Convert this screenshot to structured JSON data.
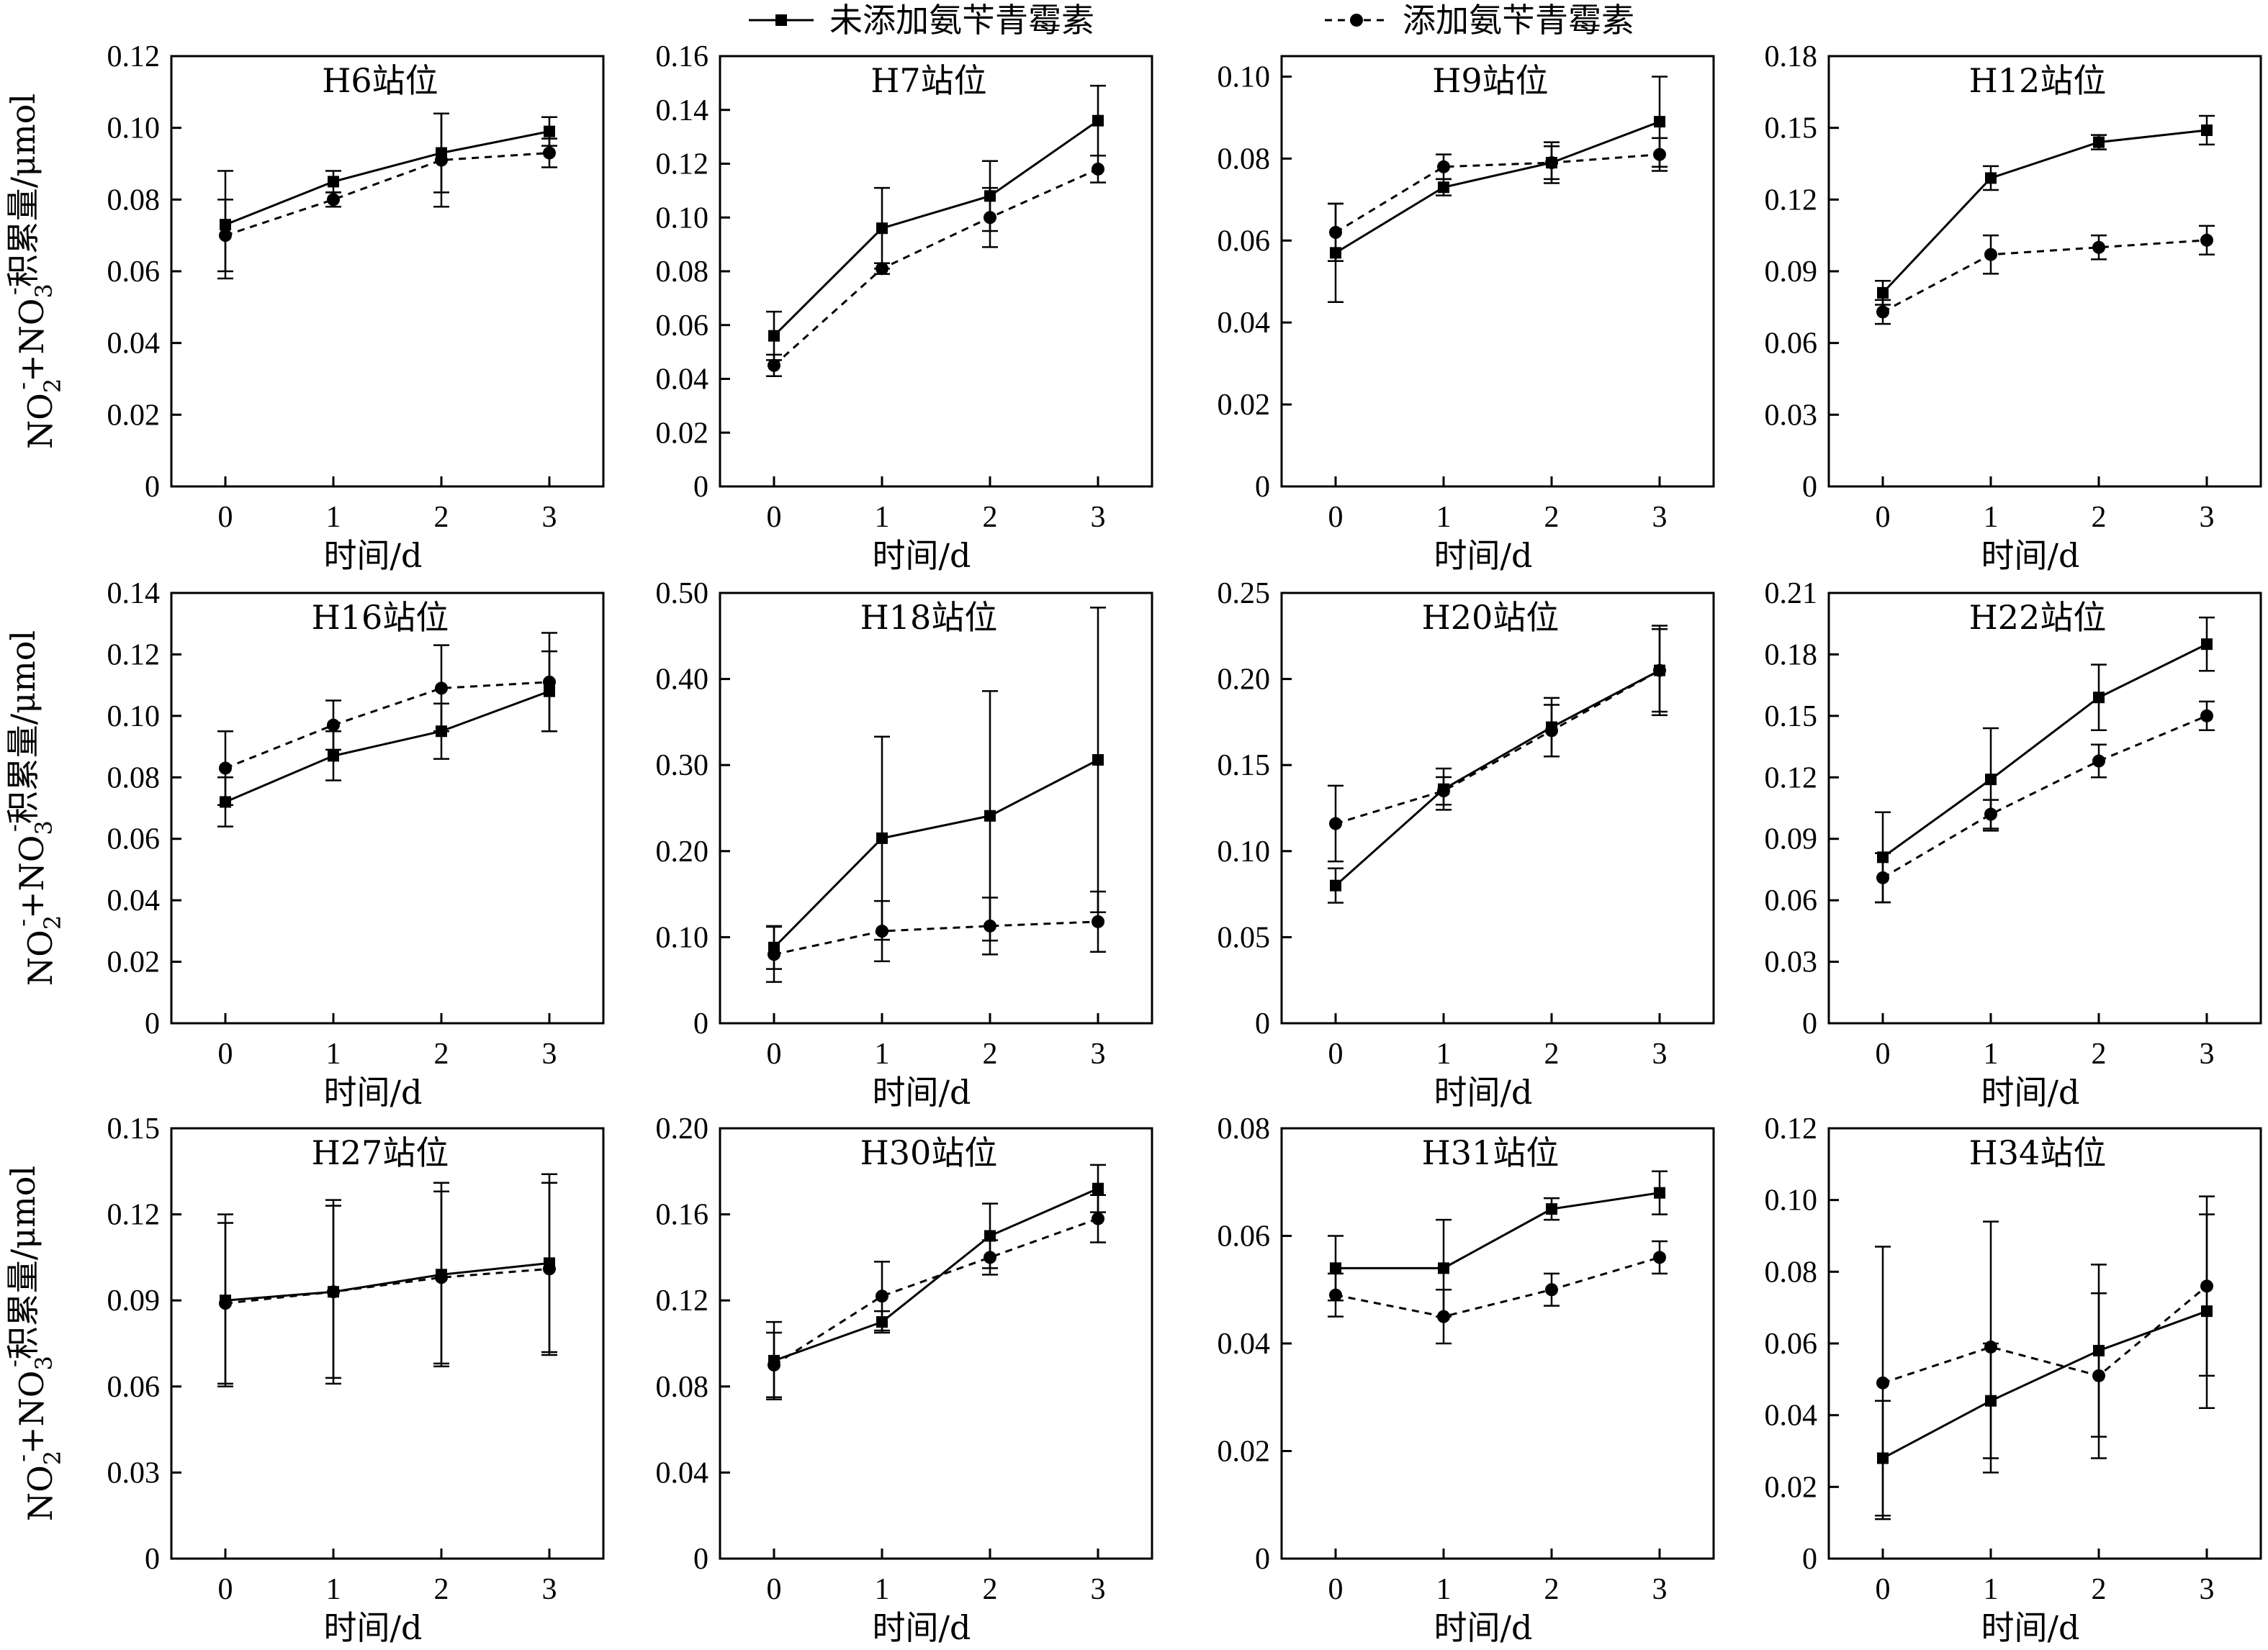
{
  "legend": {
    "series": [
      {
        "name": "未添加氨苄青霉素",
        "line": "solid",
        "marker": "square"
      },
      {
        "name": "添加氨苄青霉素",
        "line": "dashed",
        "marker": "circle"
      }
    ],
    "placement": "top-center"
  },
  "ylabel_parts": {
    "a": "NO",
    "a_sub": "2",
    "a_sup": "-",
    "plus": "+NO",
    "b_sub": "3",
    "b_sup": "-",
    "rest": "积累量/μmol"
  },
  "colors": {
    "line": "#000000",
    "axis": "#000000",
    "background": "#ffffff"
  },
  "chart_data": [
    {
      "type": "line",
      "title": "H6站位",
      "xlabel": "时间/d",
      "x": [
        0,
        1,
        2,
        3
      ],
      "xlim": [
        -0.5,
        3.5
      ],
      "ylim": [
        0,
        0.12
      ],
      "yticks": [
        0,
        0.02,
        0.04,
        0.06,
        0.08,
        0.1,
        0.12
      ],
      "yticklabels": [
        "0",
        "0.02",
        "0.04",
        "0.06",
        "0.08",
        "0.10",
        "0.12"
      ],
      "series": [
        {
          "values": [
            0.073,
            0.085,
            0.093,
            0.099
          ],
          "errors": [
            0.015,
            0.003,
            0.011,
            0.004
          ]
        },
        {
          "values": [
            0.07,
            0.08,
            0.091,
            0.093
          ],
          "errors": [
            0.01,
            0.002,
            0.013,
            0.004
          ]
        }
      ]
    },
    {
      "type": "line",
      "title": "H7站位",
      "xlabel": "时间/d",
      "x": [
        0,
        1,
        2,
        3
      ],
      "xlim": [
        -0.5,
        3.5
      ],
      "ylim": [
        0,
        0.16
      ],
      "yticks": [
        0,
        0.02,
        0.04,
        0.06,
        0.08,
        0.1,
        0.12,
        0.14,
        0.16
      ],
      "yticklabels": [
        "0",
        "0.02",
        "0.04",
        "0.06",
        "0.08",
        "0.10",
        "0.12",
        "0.14",
        "0.16"
      ],
      "series": [
        {
          "values": [
            0.056,
            0.096,
            0.108,
            0.136
          ],
          "errors": [
            0.009,
            0.015,
            0.013,
            0.013
          ]
        },
        {
          "values": [
            0.045,
            0.081,
            0.1,
            0.118
          ],
          "errors": [
            0.004,
            0.002,
            0.011,
            0.005
          ]
        }
      ]
    },
    {
      "type": "line",
      "title": "H9站位",
      "xlabel": "时间/d",
      "x": [
        0,
        1,
        2,
        3
      ],
      "xlim": [
        -0.5,
        3.5
      ],
      "ylim": [
        0,
        0.105
      ],
      "yticks": [
        0,
        0.02,
        0.04,
        0.06,
        0.08,
        0.1
      ],
      "yticklabels": [
        "0",
        "0.02",
        "0.04",
        "0.06",
        "0.08",
        "0.10"
      ],
      "series": [
        {
          "values": [
            0.057,
            0.073,
            0.079,
            0.089
          ],
          "errors": [
            0.012,
            0.002,
            0.004,
            0.011
          ]
        },
        {
          "values": [
            0.062,
            0.078,
            0.079,
            0.081
          ],
          "errors": [
            0.007,
            0.003,
            0.005,
            0.004
          ]
        }
      ]
    },
    {
      "type": "line",
      "title": "H12站位",
      "xlabel": "时间/d",
      "x": [
        0,
        1,
        2,
        3
      ],
      "xlim": [
        -0.5,
        3.5
      ],
      "ylim": [
        0,
        0.18
      ],
      "yticks": [
        0,
        0.03,
        0.06,
        0.09,
        0.12,
        0.15,
        0.18
      ],
      "yticklabels": [
        "0",
        "0.03",
        "0.06",
        "0.09",
        "0.12",
        "0.15",
        "0.18"
      ],
      "series": [
        {
          "values": [
            0.081,
            0.129,
            0.144,
            0.149
          ],
          "errors": [
            0.005,
            0.005,
            0.003,
            0.006
          ]
        },
        {
          "values": [
            0.073,
            0.097,
            0.1,
            0.103
          ],
          "errors": [
            0.005,
            0.008,
            0.005,
            0.006
          ]
        }
      ]
    },
    {
      "type": "line",
      "title": "H16站位",
      "xlabel": "时间/d",
      "x": [
        0,
        1,
        2,
        3
      ],
      "xlim": [
        -0.5,
        3.5
      ],
      "ylim": [
        0,
        0.14
      ],
      "yticks": [
        0,
        0.02,
        0.04,
        0.06,
        0.08,
        0.1,
        0.12,
        0.14
      ],
      "yticklabels": [
        "0",
        "0.02",
        "0.04",
        "0.06",
        "0.08",
        "0.10",
        "0.12",
        "0.14"
      ],
      "series": [
        {
          "values": [
            0.072,
            0.087,
            0.095,
            0.108
          ],
          "errors": [
            0.008,
            0.008,
            0.009,
            0.013
          ]
        },
        {
          "values": [
            0.083,
            0.097,
            0.109,
            0.111
          ],
          "errors": [
            0.012,
            0.008,
            0.014,
            0.016
          ]
        }
      ]
    },
    {
      "type": "line",
      "title": "H18站位",
      "xlabel": "时间/d",
      "x": [
        0,
        1,
        2,
        3
      ],
      "xlim": [
        -0.5,
        3.5
      ],
      "ylim": [
        0,
        0.5
      ],
      "yticks": [
        0,
        0.1,
        0.2,
        0.3,
        0.4,
        0.5
      ],
      "yticklabels": [
        "0",
        "0.10",
        "0.20",
        "0.30",
        "0.40",
        "0.50"
      ],
      "series": [
        {
          "values": [
            0.088,
            0.215,
            0.241,
            0.306
          ],
          "errors": [
            0.025,
            0.118,
            0.145,
            0.177
          ]
        },
        {
          "values": [
            0.08,
            0.107,
            0.113,
            0.118
          ],
          "errors": [
            0.032,
            0.035,
            0.033,
            0.035
          ]
        }
      ]
    },
    {
      "type": "line",
      "title": "H20站位",
      "xlabel": "时间/d",
      "x": [
        0,
        1,
        2,
        3
      ],
      "xlim": [
        -0.5,
        3.5
      ],
      "ylim": [
        0,
        0.25
      ],
      "yticks": [
        0,
        0.05,
        0.1,
        0.15,
        0.2,
        0.25
      ],
      "yticklabels": [
        "0",
        "0.05",
        "0.10",
        "0.15",
        "0.20",
        "0.25"
      ],
      "series": [
        {
          "values": [
            0.08,
            0.136,
            0.172,
            0.205
          ],
          "errors": [
            0.01,
            0.012,
            0.017,
            0.024
          ]
        },
        {
          "values": [
            0.116,
            0.135,
            0.17,
            0.205
          ],
          "errors": [
            0.022,
            0.008,
            0.015,
            0.026
          ]
        }
      ]
    },
    {
      "type": "line",
      "title": "H22站位",
      "xlabel": "时间/d",
      "x": [
        0,
        1,
        2,
        3
      ],
      "xlim": [
        -0.5,
        3.5
      ],
      "ylim": [
        0,
        0.21
      ],
      "yticks": [
        0,
        0.03,
        0.06,
        0.09,
        0.12,
        0.15,
        0.18,
        0.21
      ],
      "yticklabels": [
        "0",
        "0.03",
        "0.06",
        "0.09",
        "0.12",
        "0.15",
        "0.18",
        "0.21"
      ],
      "series": [
        {
          "values": [
            0.081,
            0.119,
            0.159,
            0.185
          ],
          "errors": [
            0.022,
            0.025,
            0.016,
            0.013
          ]
        },
        {
          "values": [
            0.071,
            0.102,
            0.128,
            0.15
          ],
          "errors": [
            0.012,
            0.007,
            0.008,
            0.007
          ]
        }
      ]
    },
    {
      "type": "line",
      "title": "H27站位",
      "xlabel": "时间/d",
      "x": [
        0,
        1,
        2,
        3
      ],
      "xlim": [
        -0.5,
        3.5
      ],
      "ylim": [
        0,
        0.15
      ],
      "yticks": [
        0,
        0.03,
        0.06,
        0.09,
        0.12,
        0.15
      ],
      "yticklabels": [
        "0",
        "0.03",
        "0.06",
        "0.09",
        "0.12",
        "0.15"
      ],
      "series": [
        {
          "values": [
            0.09,
            0.093,
            0.099,
            0.103
          ],
          "errors": [
            0.03,
            0.032,
            0.032,
            0.031
          ]
        },
        {
          "values": [
            0.089,
            0.093,
            0.098,
            0.101
          ],
          "errors": [
            0.028,
            0.03,
            0.03,
            0.03
          ]
        }
      ]
    },
    {
      "type": "line",
      "title": "H30站位",
      "xlabel": "时间/d",
      "x": [
        0,
        1,
        2,
        3
      ],
      "xlim": [
        -0.5,
        3.5
      ],
      "ylim": [
        0,
        0.2
      ],
      "yticks": [
        0,
        0.04,
        0.08,
        0.12,
        0.16,
        0.2
      ],
      "yticklabels": [
        "0",
        "0.04",
        "0.08",
        "0.12",
        "0.16",
        "0.20"
      ],
      "series": [
        {
          "values": [
            0.092,
            0.11,
            0.15,
            0.172
          ],
          "errors": [
            0.018,
            0.005,
            0.015,
            0.011
          ]
        },
        {
          "values": [
            0.09,
            0.122,
            0.14,
            0.158
          ],
          "errors": [
            0.015,
            0.016,
            0.008,
            0.011
          ]
        }
      ]
    },
    {
      "type": "line",
      "title": "H31站位",
      "xlabel": "时间/d",
      "x": [
        0,
        1,
        2,
        3
      ],
      "xlim": [
        -0.5,
        3.5
      ],
      "ylim": [
        0,
        0.08
      ],
      "yticks": [
        0,
        0.02,
        0.04,
        0.06,
        0.08
      ],
      "yticklabels": [
        "0",
        "0.02",
        "0.04",
        "0.06",
        "0.08"
      ],
      "series": [
        {
          "values": [
            0.054,
            0.054,
            0.065,
            0.068
          ],
          "errors": [
            0.006,
            0.009,
            0.002,
            0.004
          ]
        },
        {
          "values": [
            0.049,
            0.045,
            0.05,
            0.056
          ],
          "errors": [
            0.004,
            0.005,
            0.003,
            0.003
          ]
        }
      ]
    },
    {
      "type": "line",
      "title": "H34站位",
      "xlabel": "时间/d",
      "x": [
        0,
        1,
        2,
        3
      ],
      "xlim": [
        -0.5,
        3.5
      ],
      "ylim": [
        0,
        0.12
      ],
      "yticks": [
        0,
        0.02,
        0.04,
        0.06,
        0.08,
        0.1,
        0.12
      ],
      "yticklabels": [
        "0",
        "0.02",
        "0.04",
        "0.06",
        "0.08",
        "0.10",
        "0.12"
      ],
      "series": [
        {
          "values": [
            0.028,
            0.044,
            0.058,
            0.069
          ],
          "errors": [
            0.016,
            0.016,
            0.024,
            0.027
          ]
        },
        {
          "values": [
            0.049,
            0.059,
            0.051,
            0.076
          ],
          "errors": [
            0.038,
            0.035,
            0.023,
            0.025
          ]
        }
      ]
    }
  ]
}
